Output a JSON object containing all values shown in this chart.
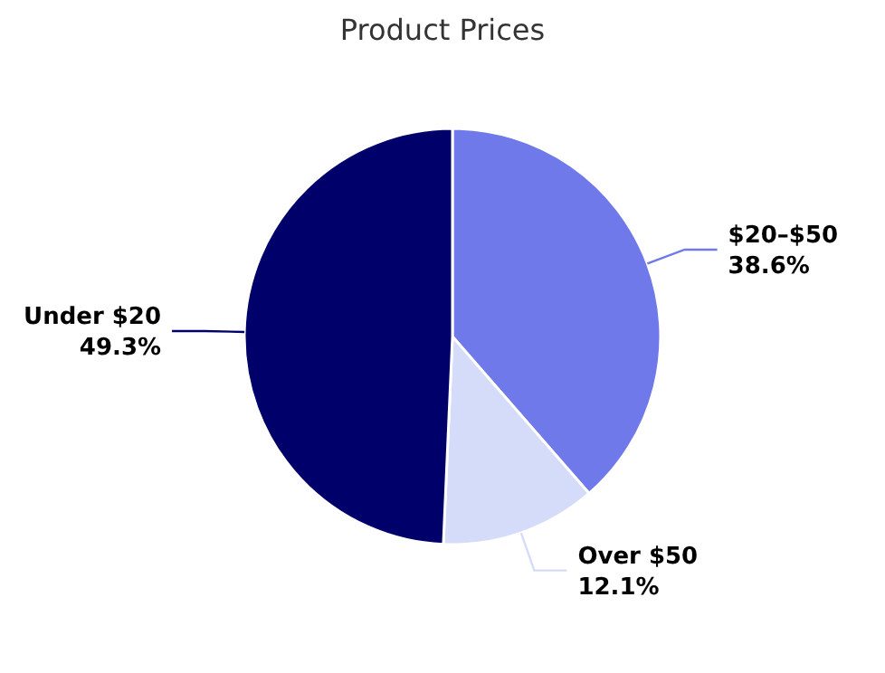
{
  "chart_data": {
    "type": "pie",
    "title": "Product Prices",
    "categories": [
      "$20–$50",
      "Over $50",
      "Under $20"
    ],
    "values": [
      38.6,
      12.1,
      49.3
    ],
    "value_labels": [
      "38.6%",
      "12.1%",
      "49.3%"
    ],
    "colors": [
      "#6f79e9",
      "#d5dcfa",
      "#00006b"
    ]
  }
}
